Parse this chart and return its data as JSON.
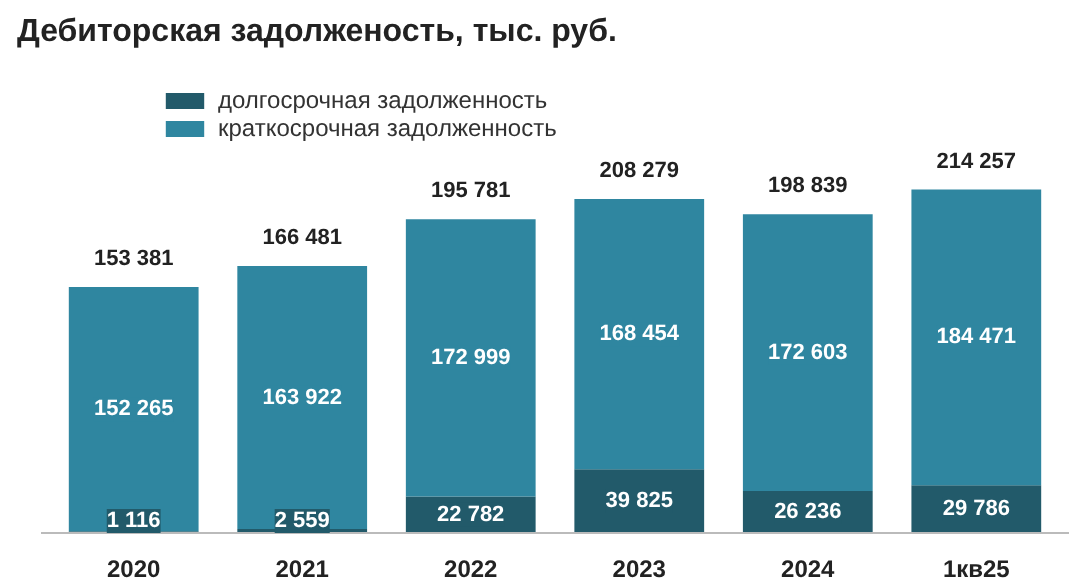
{
  "chart_data": {
    "type": "bar",
    "title": "Дебиторская задолженость, тыс. руб.",
    "stacked": true,
    "categories": [
      "2020",
      "2021",
      "2022",
      "2023",
      "2024",
      "1кв25"
    ],
    "series": [
      {
        "name": "долгосрочная задолженность",
        "color": "#225a6a",
        "values": [
          1116,
          2559,
          22782,
          39825,
          26236,
          29786
        ],
        "value_labels": [
          "1 116",
          "2 559",
          "22 782",
          "39 825",
          "26 236",
          "29 786"
        ]
      },
      {
        "name": "краткосрочная задолженность",
        "color": "#2f86a0",
        "values": [
          152265,
          163922,
          172999,
          168454,
          172603,
          184471
        ],
        "value_labels": [
          "152 265",
          "163 922",
          "172 999",
          "168 454",
          "172 603",
          "184 471"
        ]
      }
    ],
    "totals": [
      "153 381",
      "166 481",
      "195 781",
      "208 279",
      "198 839",
      "214 257"
    ],
    "legend": "top left",
    "grid": false
  }
}
